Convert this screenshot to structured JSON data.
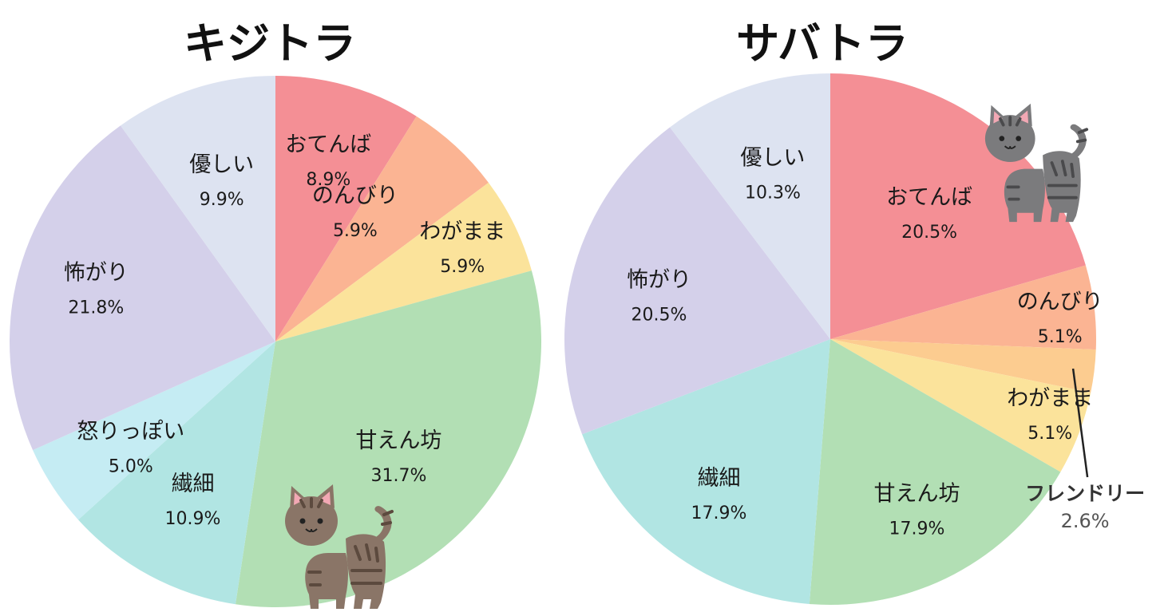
{
  "chart_data": [
    {
      "type": "pie",
      "title": "キジトラ",
      "slices": [
        {
          "label": "おてんば",
          "value": 8.9,
          "value_label": "8.9%",
          "color": "#f48f95"
        },
        {
          "label": "のんびり",
          "value": 5.9,
          "value_label": "5.9%",
          "color": "#fbb493"
        },
        {
          "label": "わがまま",
          "value": 5.9,
          "value_label": "5.9%",
          "color": "#fbe39b"
        },
        {
          "label": "甘えん坊",
          "value": 31.7,
          "value_label": "31.7%",
          "color": "#b2dfb4"
        },
        {
          "label": "繊細",
          "value": 10.9,
          "value_label": "10.9%",
          "color": "#b1e5e3"
        },
        {
          "label": "怒りっぽい",
          "value": 5.0,
          "value_label": "5.0%",
          "color": "#c5ecf3"
        },
        {
          "label": "怖がり",
          "value": 21.8,
          "value_label": "21.8%",
          "color": "#d4d0ea"
        },
        {
          "label": "優しい",
          "value": 9.9,
          "value_label": "9.9%",
          "color": "#dde3f1"
        }
      ],
      "illustration": "brown-tabby-cat"
    },
    {
      "type": "pie",
      "title": "サバトラ",
      "slices": [
        {
          "label": "おてんば",
          "value": 20.5,
          "value_label": "20.5%",
          "color": "#f48f95"
        },
        {
          "label": "のんびり",
          "value": 5.1,
          "value_label": "5.1%",
          "color": "#fbb493"
        },
        {
          "label": "フレンドリー",
          "value": 2.6,
          "value_label": "2.6%",
          "color": "#fccc90",
          "external": true
        },
        {
          "label": "わがまま",
          "value": 5.1,
          "value_label": "5.1%",
          "color": "#fbe39b"
        },
        {
          "label": "甘えん坊",
          "value": 17.9,
          "value_label": "17.9%",
          "color": "#b2dfb4"
        },
        {
          "label": "繊細",
          "value": 17.9,
          "value_label": "17.9%",
          "color": "#b1e5e3"
        },
        {
          "label": "怖がり",
          "value": 20.5,
          "value_label": "20.5%",
          "color": "#d4d0ea"
        },
        {
          "label": "優しい",
          "value": 10.3,
          "value_label": "10.3%",
          "color": "#dde3f1"
        }
      ],
      "illustration": "gray-tabby-cat"
    }
  ]
}
